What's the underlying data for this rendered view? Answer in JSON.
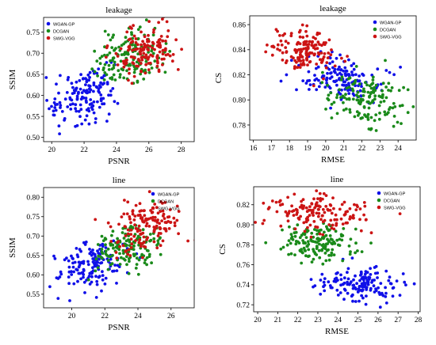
{
  "colors": {
    "WGAN-GP": "#1010e8",
    "DCGAN": "#1a8a1a",
    "SWG-VGG": "#cc1414"
  },
  "chart_data": [
    {
      "type": "scatter",
      "title": "leakage",
      "xlabel": "PSNR",
      "ylabel": "SSIM",
      "xlim": [
        19.5,
        28.8
      ],
      "ylim": [
        0.49,
        0.785
      ],
      "xticks": [
        20,
        22,
        24,
        26,
        28
      ],
      "yticks": [
        0.5,
        0.55,
        0.6,
        0.65,
        0.7,
        0.75
      ],
      "xtick_labels": [
        "20",
        "22",
        "24",
        "26",
        "28"
      ],
      "ytick_labels": [
        "0.50",
        "0.55",
        "0.60",
        "0.65",
        "0.70",
        "0.75"
      ],
      "legend": "top-left",
      "series": [
        {
          "name": "WGAN-GP",
          "color": "#1010e8",
          "n": 150,
          "center": [
            21.9,
            0.6
          ],
          "spread": [
            1.0,
            0.032
          ],
          "corr": 0.25
        },
        {
          "name": "DCGAN",
          "color": "#1a8a1a",
          "n": 150,
          "center": [
            24.8,
            0.69
          ],
          "spread": [
            1.1,
            0.03
          ],
          "corr": 0.3
        },
        {
          "name": "SWG-VGG",
          "color": "#cc1414",
          "n": 150,
          "center": [
            25.8,
            0.705
          ],
          "spread": [
            0.95,
            0.028
          ],
          "corr": 0.2
        }
      ]
    },
    {
      "type": "scatter",
      "title": "leakage",
      "xlabel": "RMSE",
      "ylabel": "CS",
      "xlim": [
        15.8,
        25.0
      ],
      "ylim": [
        0.768,
        0.867
      ],
      "xticks": [
        16,
        17,
        18,
        19,
        20,
        21,
        22,
        23,
        24
      ],
      "yticks": [
        0.78,
        0.8,
        0.82,
        0.84,
        0.86
      ],
      "xtick_labels": [
        "16",
        "17",
        "18",
        "19",
        "20",
        "21",
        "22",
        "23",
        "24"
      ],
      "ytick_labels": [
        "0.78",
        "0.80",
        "0.82",
        "0.84",
        "0.86"
      ],
      "legend": "top-right",
      "series": [
        {
          "name": "WGAN-GP",
          "color": "#1010e8",
          "n": 150,
          "center": [
            20.9,
            0.816
          ],
          "spread": [
            1.1,
            0.01
          ],
          "corr": -0.2
        },
        {
          "name": "DCGAN",
          "color": "#1a8a1a",
          "n": 150,
          "center": [
            22.2,
            0.8
          ],
          "spread": [
            1.0,
            0.011
          ],
          "corr": -0.2
        },
        {
          "name": "SWG-VGG",
          "color": "#cc1414",
          "n": 150,
          "center": [
            19.0,
            0.839
          ],
          "spread": [
            1.0,
            0.009
          ],
          "corr": -0.2
        }
      ]
    },
    {
      "type": "scatter",
      "title": "line",
      "xlabel": "PSNR",
      "ylabel": "SSIM",
      "xlim": [
        18.3,
        27.4
      ],
      "ylim": [
        0.515,
        0.825
      ],
      "xticks": [
        20,
        22,
        24,
        26
      ],
      "yticks": [
        0.55,
        0.6,
        0.65,
        0.7,
        0.75,
        0.8
      ],
      "xtick_labels": [
        "20",
        "22",
        "24",
        "26"
      ],
      "ytick_labels": [
        "0.55",
        "0.60",
        "0.65",
        "0.70",
        "0.75",
        "0.80"
      ],
      "legend": "top-right",
      "series": [
        {
          "name": "WGAN-GP",
          "color": "#1010e8",
          "n": 150,
          "center": [
            21.2,
            0.62
          ],
          "spread": [
            1.1,
            0.03
          ],
          "corr": 0.3
        },
        {
          "name": "DCGAN",
          "color": "#1a8a1a",
          "n": 150,
          "center": [
            23.3,
            0.668
          ],
          "spread": [
            1.0,
            0.032
          ],
          "corr": 0.3
        },
        {
          "name": "SWG-VGG",
          "color": "#cc1414",
          "n": 150,
          "center": [
            24.5,
            0.728
          ],
          "spread": [
            1.05,
            0.033
          ],
          "corr": 0.2
        }
      ]
    },
    {
      "type": "scatter",
      "title": "line",
      "xlabel": "RMSE",
      "ylabel": "CS",
      "xlim": [
        19.8,
        28.1
      ],
      "ylim": [
        0.713,
        0.838
      ],
      "xticks": [
        20,
        21,
        22,
        23,
        24,
        25,
        26,
        27,
        28
      ],
      "yticks": [
        0.72,
        0.74,
        0.76,
        0.78,
        0.8,
        0.82
      ],
      "xtick_labels": [
        "20",
        "21",
        "22",
        "23",
        "24",
        "25",
        "26",
        "27",
        "28"
      ],
      "ytick_labels": [
        "0.72",
        "0.74",
        "0.76",
        "0.78",
        "0.80",
        "0.82"
      ],
      "legend": "top-right",
      "series": [
        {
          "name": "WGAN-GP",
          "color": "#1010e8",
          "n": 150,
          "center": [
            25.1,
            0.741
          ],
          "spread": [
            1.0,
            0.008
          ],
          "corr": -0.1
        },
        {
          "name": "DCGAN",
          "color": "#1a8a1a",
          "n": 150,
          "center": [
            22.9,
            0.782
          ],
          "spread": [
            0.85,
            0.01
          ],
          "corr": -0.1
        },
        {
          "name": "SWG-VGG",
          "color": "#cc1414",
          "n": 150,
          "center": [
            23.1,
            0.81
          ],
          "spread": [
            1.3,
            0.009
          ],
          "corr": 0.0
        }
      ]
    }
  ]
}
